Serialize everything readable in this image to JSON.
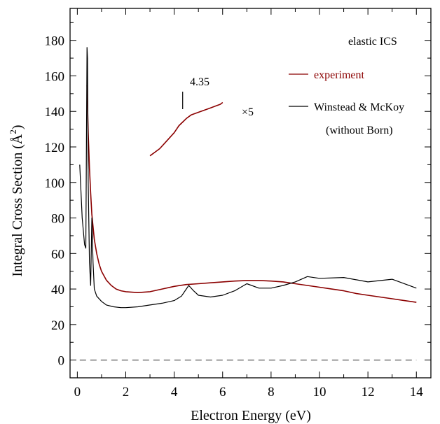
{
  "chart_data": {
    "type": "line",
    "title": "",
    "xlabel": "Electron Energy (eV)",
    "ylabel": "Integral Cross Section (Å²)",
    "ylabel_main": "Integral Cross Section (Å",
    "ylabel_sup": "2",
    "ylabel_close": ")",
    "xlim": [
      -0.3,
      14.6
    ],
    "ylim": [
      -10,
      198
    ],
    "xticks": [
      0,
      2,
      4,
      6,
      8,
      10,
      12,
      14
    ],
    "yticks": [
      0,
      20,
      40,
      60,
      80,
      100,
      120,
      140,
      160,
      180
    ],
    "legend_position": "top-right",
    "colors": {
      "experiment": "#8b0000",
      "theory": "#000000",
      "zero": "#555555"
    },
    "annotations": {
      "panel_label": "elastic ICS",
      "peak_label": "4.35",
      "peak_x": 4.35,
      "scale_label": "×5"
    },
    "series": [
      {
        "name": "experiment",
        "x": [
          0.4,
          0.45,
          0.5,
          0.55,
          0.6,
          0.7,
          0.8,
          0.9,
          1.0,
          1.2,
          1.4,
          1.6,
          1.8,
          2.0,
          2.5,
          3.0,
          3.5,
          4.0,
          4.5,
          5.0,
          5.5,
          6.0,
          6.5,
          7.0,
          7.5,
          8.0,
          8.5,
          9.0,
          9.5,
          10.0,
          10.5,
          11.0,
          11.5,
          12.0,
          12.5,
          13.0,
          13.5,
          14.0
        ],
        "y": [
          155,
          128,
          108,
          94,
          82,
          68,
          60,
          54,
          50,
          45,
          42,
          40,
          39,
          38.5,
          38,
          38.5,
          40,
          41.5,
          42.5,
          43,
          43.5,
          44,
          44.5,
          44.8,
          44.8,
          44.5,
          44,
          43,
          42,
          41,
          40,
          39,
          37.5,
          36.5,
          35.5,
          34.5,
          33.5,
          32.5
        ]
      },
      {
        "name": "experiment ×5",
        "x": [
          3.0,
          3.2,
          3.4,
          3.6,
          3.8,
          4.0,
          4.2,
          4.35,
          4.5,
          4.7,
          4.9,
          5.1,
          5.3,
          5.5,
          5.7,
          5.9,
          6.0
        ],
        "y": [
          115,
          117,
          119,
          122,
          125,
          128,
          132,
          134,
          136,
          138,
          139,
          140,
          141,
          142,
          143,
          144,
          145
        ]
      },
      {
        "name": "Winstead & McKoy",
        "name_line2": "(without Born)",
        "x": [
          0.1,
          0.2,
          0.3,
          0.35,
          0.4,
          0.42,
          0.45,
          0.5,
          0.55,
          0.6,
          0.65,
          0.7,
          0.8,
          1.0,
          1.2,
          1.5,
          1.8,
          2.0,
          2.5,
          3.0,
          3.5,
          4.0,
          4.3,
          4.5,
          4.6,
          4.8,
          5.0,
          5.5,
          6.0,
          6.5,
          7.0,
          7.5,
          8.0,
          8.5,
          9.0,
          9.5,
          10.0,
          11.0,
          12.0,
          13.0,
          14.0
        ],
        "y": [
          110,
          80,
          65,
          63,
          176,
          170,
          100,
          55,
          42,
          80,
          55,
          40,
          36,
          33,
          31,
          30,
          29.5,
          29.5,
          30,
          31,
          32,
          33.5,
          36,
          40,
          42,
          39,
          36.5,
          35.5,
          36.5,
          39,
          43,
          40.5,
          40.5,
          42,
          44,
          47,
          46,
          46.5,
          44,
          45.5,
          40.5
        ]
      }
    ],
    "reference_line": {
      "y": 0,
      "style": "dashed"
    }
  }
}
